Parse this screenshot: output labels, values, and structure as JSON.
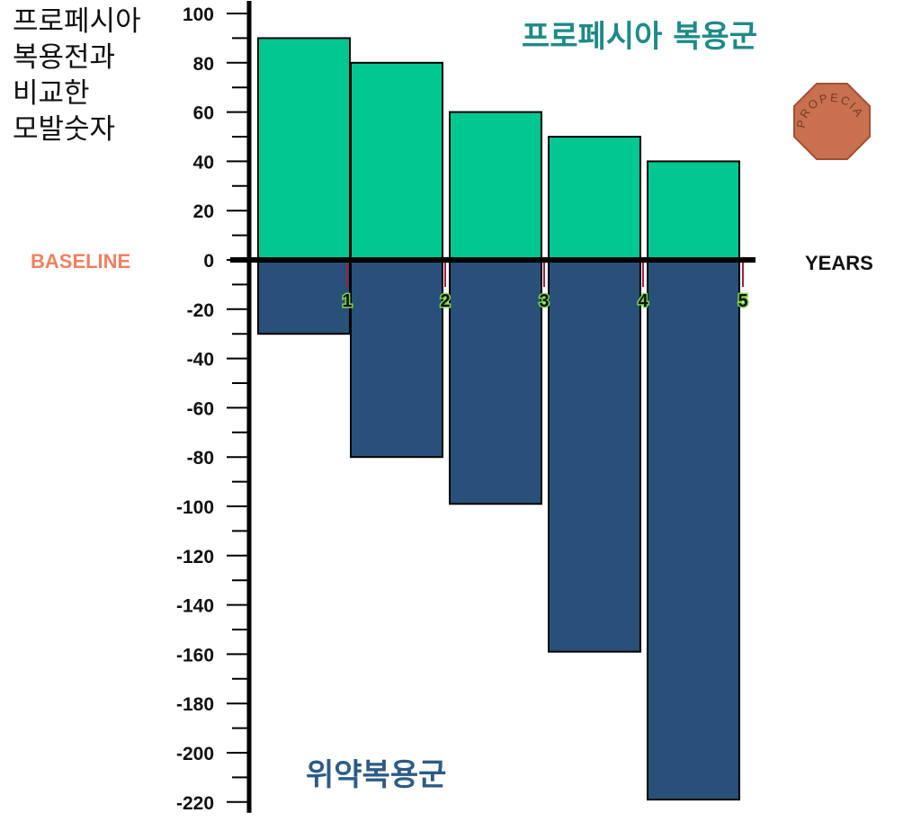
{
  "chart_data": {
    "type": "bar",
    "ylabel_lines": [
      "프로페시아",
      "복용전과",
      "비교한",
      "모발숫자"
    ],
    "xlabel": "YEARS",
    "baseline_label": "BASELINE",
    "x_ticks": [
      "1",
      "2",
      "3",
      "4",
      "5"
    ],
    "yticks": [
      100,
      80,
      60,
      40,
      20,
      0,
      -20,
      -40,
      -60,
      -80,
      -100,
      -120,
      -140,
      -160,
      -180,
      -200,
      -220
    ],
    "ylim": [
      -220,
      100
    ],
    "series": [
      {
        "name": "프로페시아 복용군",
        "values": [
          90,
          80,
          60,
          50,
          40
        ]
      },
      {
        "name": "위약복용군",
        "values": [
          -30,
          -80,
          -99,
          -159,
          -219
        ]
      }
    ],
    "pill_text": "PROPECIA",
    "colors": {
      "drug": "#00c890",
      "placebo": "#285078",
      "baseline_label": "#f08060",
      "pill": "#c87050",
      "year_marker": "#a02040"
    },
    "legend_placement": "in-plot labels (top for drug, bottom for placebo)"
  }
}
